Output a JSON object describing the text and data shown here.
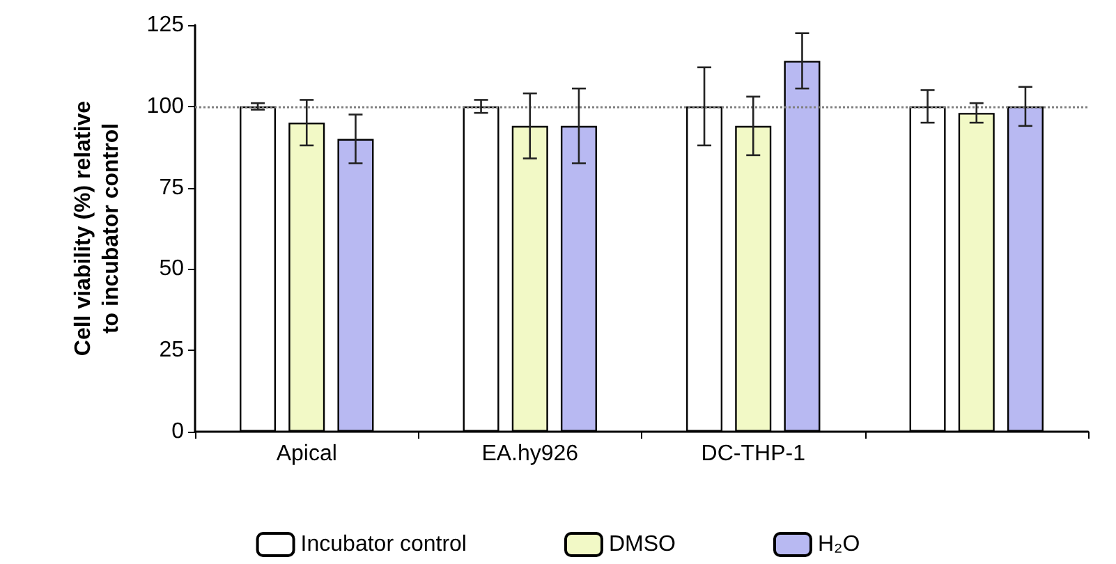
{
  "chart_data": {
    "type": "bar",
    "ylabel": "Cell viability (%) relative\nto incubator control",
    "categories": [
      "Apical",
      "EA.hy926",
      "DC-THP-1",
      null
    ],
    "series": [
      {
        "name": "Incubator control",
        "color": "#ffffff",
        "values": [
          100,
          100,
          100,
          100
        ],
        "errors": [
          1,
          2,
          12,
          5
        ]
      },
      {
        "name": "DMSO",
        "color": "#f2f9c6",
        "values": [
          95,
          94,
          94,
          98
        ],
        "errors": [
          7,
          10,
          9,
          3
        ]
      },
      {
        "name": "H₂O",
        "color": "#b8b9f2",
        "values": [
          90,
          94,
          114,
          100
        ],
        "errors": [
          7.5,
          11.5,
          8.5,
          6
        ]
      }
    ],
    "ylim": [
      0,
      125
    ],
    "yticks": [
      0,
      25,
      50,
      75,
      100,
      125
    ],
    "grid": false,
    "legend": "bottom",
    "ref_lines": [
      {
        "axis": "y",
        "value": 100,
        "color": "#808080",
        "line_style": "dotted"
      }
    ]
  }
}
